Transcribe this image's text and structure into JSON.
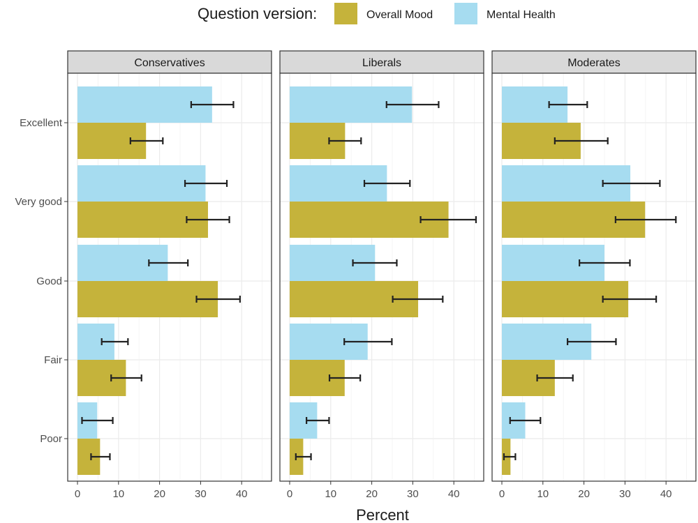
{
  "chart_data": {
    "type": "bar",
    "orientation": "horizontal",
    "legend": {
      "title": "Question version:",
      "placement": "top",
      "entries": [
        {
          "name": "Overall Mood",
          "color": "#c5b33b"
        },
        {
          "name": "Mental Health",
          "color": "#a6dcf0"
        }
      ]
    },
    "xlabel": "Percent",
    "ylabel": "",
    "xlim": [
      0,
      46
    ],
    "xticks": [
      "0",
      "10",
      "20",
      "30",
      "40"
    ],
    "categories": [
      "Excellent",
      "Very good",
      "Good",
      "Fair",
      "Poor"
    ],
    "grid": true,
    "panels": [
      {
        "title": "Conservatives",
        "series": [
          {
            "name": "Mental Health",
            "values": [
              32.8,
              31.2,
              22.0,
              9.0,
              4.8
            ],
            "ci_low": [
              27.7,
              26.2,
              17.4,
              5.9,
              1.1
            ],
            "ci_high": [
              38.0,
              36.4,
              26.9,
              12.3,
              8.6
            ]
          },
          {
            "name": "Overall Mood",
            "values": [
              16.7,
              31.8,
              34.2,
              11.8,
              5.5
            ],
            "ci_low": [
              12.9,
              26.6,
              29.0,
              8.2,
              3.3
            ],
            "ci_high": [
              20.8,
              37.0,
              39.6,
              15.6,
              7.9
            ]
          }
        ]
      },
      {
        "title": "Liberals",
        "series": [
          {
            "name": "Mental Health",
            "values": [
              29.8,
              23.7,
              20.8,
              19.0,
              6.7
            ],
            "ci_low": [
              23.6,
              18.2,
              15.4,
              13.3,
              4.1
            ],
            "ci_high": [
              36.3,
              29.3,
              26.1,
              24.9,
              9.6
            ]
          },
          {
            "name": "Overall Mood",
            "values": [
              13.5,
              38.7,
              31.3,
              13.4,
              3.3
            ],
            "ci_low": [
              9.6,
              31.9,
              25.1,
              9.7,
              1.5
            ],
            "ci_high": [
              17.4,
              45.4,
              37.3,
              17.2,
              5.2
            ]
          }
        ]
      },
      {
        "title": "Moderates",
        "series": [
          {
            "name": "Mental Health",
            "values": [
              16.0,
              31.3,
              25.0,
              21.8,
              5.7
            ],
            "ci_low": [
              11.5,
              24.6,
              18.9,
              16.0,
              2.0
            ],
            "ci_high": [
              20.8,
              38.5,
              31.2,
              27.8,
              9.4
            ]
          },
          {
            "name": "Overall Mood",
            "values": [
              19.2,
              34.9,
              30.8,
              12.9,
              2.1
            ],
            "ci_low": [
              12.9,
              27.7,
              24.6,
              8.6,
              0.5
            ],
            "ci_high": [
              25.8,
              42.4,
              37.6,
              17.3,
              3.3
            ]
          }
        ]
      }
    ]
  }
}
